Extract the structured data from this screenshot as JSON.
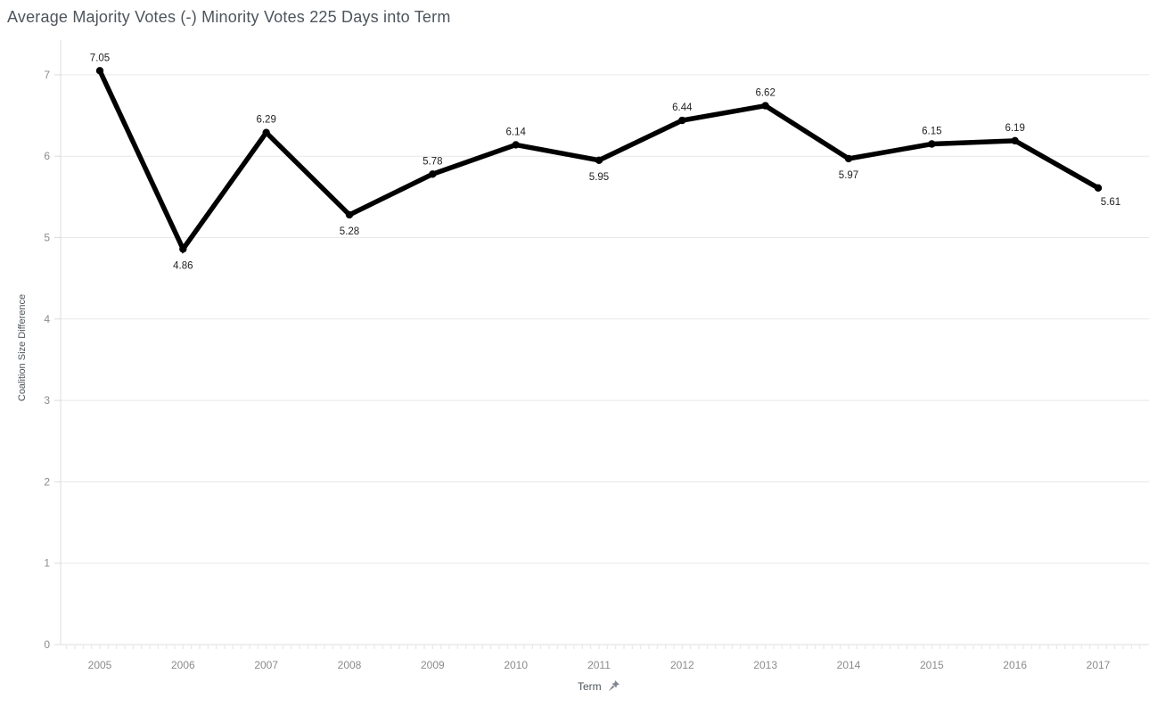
{
  "title": "Average Majority Votes (-) Minority Votes 225 Days into Term",
  "chart_data": {
    "type": "line",
    "title": "Average Majority Votes (-) Minority Votes 225 Days into Term",
    "x": [
      "2005",
      "2006",
      "2007",
      "2008",
      "2009",
      "2010",
      "2011",
      "2012",
      "2013",
      "2014",
      "2015",
      "2016",
      "2017"
    ],
    "values": [
      7.05,
      4.86,
      6.29,
      5.28,
      5.78,
      6.14,
      5.95,
      6.44,
      6.62,
      5.97,
      6.15,
      6.19,
      5.61
    ],
    "data_labels": [
      "7.05",
      "4.86",
      "6.29",
      "5.28",
      "5.78",
      "6.14",
      "5.95",
      "6.44",
      "6.62",
      "5.97",
      "6.15",
      "6.19",
      "5.61"
    ],
    "xlabel": "Term",
    "ylabel": "Coalition Size Difference",
    "ylim": [
      0,
      7
    ],
    "yticks": [
      0,
      1,
      2,
      3,
      4,
      5,
      6,
      7
    ],
    "legend": "none",
    "grid": "horizontal-major",
    "colors": {
      "line": "#000000",
      "marker": "#000000",
      "data_label": "#1f1f1f",
      "tick_label": "#8b8b8b",
      "grid": "#e8e8e8",
      "axis": "#dcdcdc",
      "minor_tick": "#e3e3e3",
      "title": "#4d555c",
      "axis_title": "#4d555c",
      "pin_icon": "#7e8792",
      "background": "#ffffff"
    },
    "icons": {
      "x_axis_pin": "pin-icon"
    }
  }
}
